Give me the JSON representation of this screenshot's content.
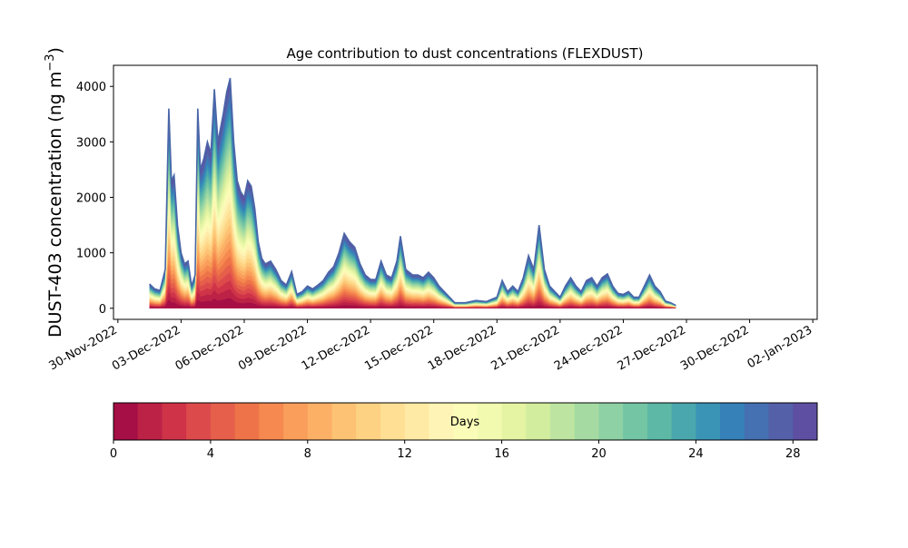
{
  "chart_data": {
    "type": "area",
    "title": "Age contribution to dust concentrations (FLEXDUST)",
    "ylabel_main": "DUST-403 concentration (ng m",
    "ylabel_sup": "−3",
    "ylabel_close": ")",
    "ylim": [
      -200,
      4380
    ],
    "yticks": [
      "0",
      "1000",
      "2000",
      "3000",
      "4000"
    ],
    "xlim": [
      "2022-11-29T19:00",
      "2023-01-02T05:00"
    ],
    "xticks": [
      {
        "date": "2022-11-30",
        "label": "30-Nov-2022"
      },
      {
        "date": "2022-12-03",
        "label": "03-Dec-2022"
      },
      {
        "date": "2022-12-06",
        "label": "06-Dec-2022"
      },
      {
        "date": "2022-12-09",
        "label": "09-Dec-2022"
      },
      {
        "date": "2022-12-12",
        "label": "12-Dec-2022"
      },
      {
        "date": "2022-12-15",
        "label": "15-Dec-2022"
      },
      {
        "date": "2022-12-18",
        "label": "18-Dec-2022"
      },
      {
        "date": "2022-12-21",
        "label": "21-Dec-2022"
      },
      {
        "date": "2022-12-24",
        "label": "24-Dec-2022"
      },
      {
        "date": "2022-12-27",
        "label": "27-Dec-2022"
      },
      {
        "date": "2022-12-30",
        "label": "30-Dec-2022"
      },
      {
        "date": "2023-01-02",
        "label": "02-Jan-2023"
      }
    ],
    "total_series": {
      "name": "",
      "points": [
        [
          "2022-12-01T12:00",
          440
        ],
        [
          "2022-12-01T18:00",
          350
        ],
        [
          "2022-12-02T00:00",
          320
        ],
        [
          "2022-12-02T06:00",
          700
        ],
        [
          "2022-12-02T10:00",
          3600
        ],
        [
          "2022-12-02T13:00",
          2300
        ],
        [
          "2022-12-02T16:00",
          2400
        ],
        [
          "2022-12-02T20:00",
          1500
        ],
        [
          "2022-12-03T00:00",
          1000
        ],
        [
          "2022-12-03T04:00",
          800
        ],
        [
          "2022-12-03T08:00",
          850
        ],
        [
          "2022-12-03T12:00",
          400
        ],
        [
          "2022-12-03T16:00",
          600
        ],
        [
          "2022-12-03T19:00",
          3600
        ],
        [
          "2022-12-03T22:00",
          2500
        ],
        [
          "2022-12-04T02:00",
          2700
        ],
        [
          "2022-12-04T06:00",
          3000
        ],
        [
          "2022-12-04T10:00",
          2800
        ],
        [
          "2022-12-04T14:00",
          3950
        ],
        [
          "2022-12-04T18:00",
          3000
        ],
        [
          "2022-12-05T00:00",
          3500
        ],
        [
          "2022-12-05T04:00",
          3900
        ],
        [
          "2022-12-05T08:00",
          4150
        ],
        [
          "2022-12-05T12:00",
          3000
        ],
        [
          "2022-12-05T16:00",
          2300
        ],
        [
          "2022-12-05T20:00",
          2100
        ],
        [
          "2022-12-06T00:00",
          2000
        ],
        [
          "2022-12-06T04:00",
          2300
        ],
        [
          "2022-12-06T08:00",
          2200
        ],
        [
          "2022-12-06T12:00",
          1800
        ],
        [
          "2022-12-06T16:00",
          1200
        ],
        [
          "2022-12-06T20:00",
          900
        ],
        [
          "2022-12-07T00:00",
          800
        ],
        [
          "2022-12-07T06:00",
          850
        ],
        [
          "2022-12-07T12:00",
          700
        ],
        [
          "2022-12-07T18:00",
          500
        ],
        [
          "2022-12-08T00:00",
          420
        ],
        [
          "2022-12-08T06:00",
          660
        ],
        [
          "2022-12-08T12:00",
          250
        ],
        [
          "2022-12-08T18:00",
          300
        ],
        [
          "2022-12-09T00:00",
          400
        ],
        [
          "2022-12-09T06:00",
          350
        ],
        [
          "2022-12-09T12:00",
          420
        ],
        [
          "2022-12-09T18:00",
          500
        ],
        [
          "2022-12-10T00:00",
          650
        ],
        [
          "2022-12-10T06:00",
          750
        ],
        [
          "2022-12-10T12:00",
          1000
        ],
        [
          "2022-12-10T18:00",
          1350
        ],
        [
          "2022-12-11T00:00",
          1200
        ],
        [
          "2022-12-11T06:00",
          1100
        ],
        [
          "2022-12-11T12:00",
          800
        ],
        [
          "2022-12-11T18:00",
          600
        ],
        [
          "2022-12-12T00:00",
          520
        ],
        [
          "2022-12-12T06:00",
          520
        ],
        [
          "2022-12-12T12:00",
          850
        ],
        [
          "2022-12-12T18:00",
          600
        ],
        [
          "2022-12-13T00:00",
          550
        ],
        [
          "2022-12-13T06:00",
          850
        ],
        [
          "2022-12-13T10:00",
          1300
        ],
        [
          "2022-12-13T16:00",
          700
        ],
        [
          "2022-12-14T00:00",
          600
        ],
        [
          "2022-12-14T06:00",
          600
        ],
        [
          "2022-12-14T12:00",
          550
        ],
        [
          "2022-12-14T18:00",
          650
        ],
        [
          "2022-12-15T00:00",
          550
        ],
        [
          "2022-12-15T06:00",
          400
        ],
        [
          "2022-12-15T12:00",
          300
        ],
        [
          "2022-12-15T18:00",
          200
        ],
        [
          "2022-12-16T00:00",
          100
        ],
        [
          "2022-12-16T12:00",
          100
        ],
        [
          "2022-12-17T00:00",
          140
        ],
        [
          "2022-12-17T12:00",
          120
        ],
        [
          "2022-12-18T00:00",
          200
        ],
        [
          "2022-12-18T06:00",
          500
        ],
        [
          "2022-12-18T12:00",
          300
        ],
        [
          "2022-12-18T18:00",
          400
        ],
        [
          "2022-12-19T00:00",
          300
        ],
        [
          "2022-12-19T06:00",
          550
        ],
        [
          "2022-12-19T12:00",
          950
        ],
        [
          "2022-12-19T18:00",
          700
        ],
        [
          "2022-12-20T00:00",
          1500
        ],
        [
          "2022-12-20T06:00",
          700
        ],
        [
          "2022-12-20T12:00",
          400
        ],
        [
          "2022-12-20T18:00",
          300
        ],
        [
          "2022-12-21T00:00",
          200
        ],
        [
          "2022-12-21T06:00",
          400
        ],
        [
          "2022-12-21T12:00",
          550
        ],
        [
          "2022-12-21T18:00",
          400
        ],
        [
          "2022-12-22T00:00",
          300
        ],
        [
          "2022-12-22T06:00",
          500
        ],
        [
          "2022-12-22T12:00",
          550
        ],
        [
          "2022-12-22T18:00",
          400
        ],
        [
          "2022-12-23T00:00",
          550
        ],
        [
          "2022-12-23T06:00",
          620
        ],
        [
          "2022-12-23T12:00",
          400
        ],
        [
          "2022-12-23T18:00",
          270
        ],
        [
          "2022-12-24T00:00",
          250
        ],
        [
          "2022-12-24T06:00",
          300
        ],
        [
          "2022-12-24T12:00",
          200
        ],
        [
          "2022-12-24T18:00",
          200
        ],
        [
          "2022-12-25T00:00",
          400
        ],
        [
          "2022-12-25T06:00",
          600
        ],
        [
          "2022-12-25T12:00",
          400
        ],
        [
          "2022-12-25T18:00",
          300
        ],
        [
          "2022-12-26T00:00",
          130
        ],
        [
          "2022-12-26T06:00",
          100
        ],
        [
          "2022-12-26T12:00",
          50
        ]
      ]
    },
    "colorbar": {
      "label": "Days",
      "min": 0,
      "max": 30,
      "ticks": [
        "0",
        "4",
        "8",
        "12",
        "16",
        "20",
        "24",
        "28"
      ],
      "colors": [
        "#a50f45",
        "#bc2146",
        "#cf3348",
        "#dd4a4c",
        "#e55f4a",
        "#ee7349",
        "#f5894f",
        "#f99e5b",
        "#fcb066",
        "#fdc273",
        "#fed283",
        "#fedf94",
        "#fee9a5",
        "#fef4b5",
        "#fbfcb7",
        "#f2fab0",
        "#e4f4a3",
        "#d2ed9e",
        "#bde4a0",
        "#a5dba2",
        "#8dd1a4",
        "#73c5a4",
        "#5db8a6",
        "#4aa7ad",
        "#3a94b6",
        "#3581b8",
        "#4570b1",
        "#5460a8",
        "#5e4fa2"
      ]
    }
  }
}
